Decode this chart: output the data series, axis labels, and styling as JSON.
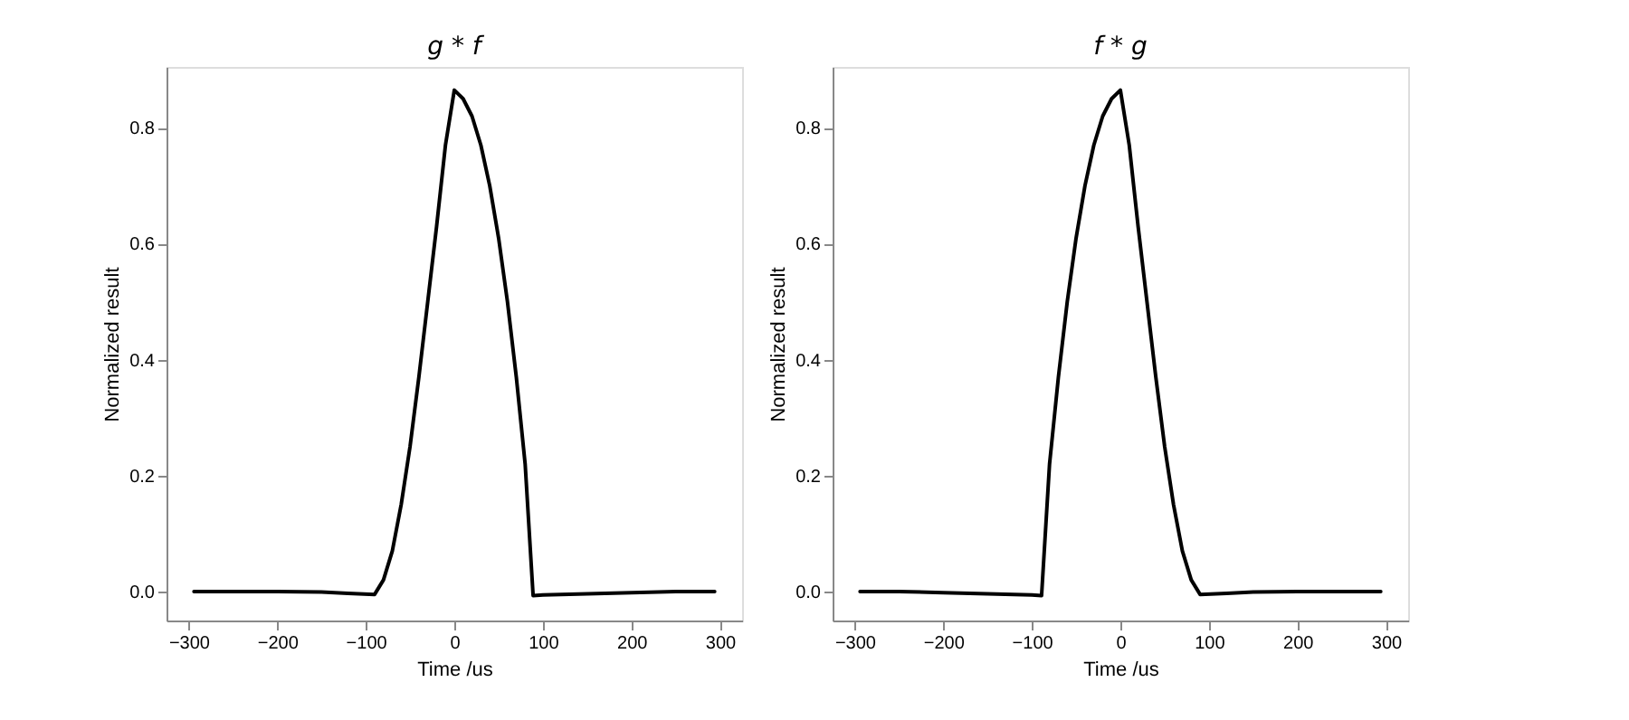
{
  "chart_data": [
    {
      "type": "line",
      "title": "g * f",
      "xlabel": "Time /us",
      "ylabel": "Normalized result",
      "x": [
        -294,
        -200,
        -150,
        -120,
        -90,
        -80,
        -70,
        -60,
        -50,
        -40,
        -30,
        -20,
        -10,
        0,
        10,
        20,
        30,
        40,
        50,
        60,
        70,
        80,
        89,
        100,
        150,
        200,
        250,
        294
      ],
      "series": [
        {
          "color": "#000000",
          "values": [
            0,
            0,
            -0.001,
            -0.003,
            -0.005,
            0.02,
            0.07,
            0.15,
            0.25,
            0.37,
            0.5,
            0.63,
            0.77,
            0.865,
            0.85,
            0.82,
            0.77,
            0.7,
            0.61,
            0.5,
            0.37,
            0.22,
            -0.007,
            -0.006,
            -0.004,
            -0.002,
            0,
            0
          ]
        }
      ],
      "xlim": [
        -325,
        325
      ],
      "ylim": [
        -0.05,
        0.905
      ],
      "xticks": [
        {
          "value": -300,
          "label": "−300"
        },
        {
          "value": -200,
          "label": "−200"
        },
        {
          "value": -100,
          "label": "−100"
        },
        0,
        100,
        200,
        300
      ],
      "yticks": [
        {
          "value": 0,
          "label": "0.0"
        },
        0.2,
        0.4,
        0.6,
        0.8
      ],
      "grid": false,
      "line_style": "solid"
    },
    {
      "type": "line",
      "title": "f * g",
      "xlabel": "Time /us",
      "ylabel": "Normalized result",
      "x": [
        -294,
        -250,
        -200,
        -150,
        -100,
        -89,
        -80,
        -70,
        -60,
        -50,
        -40,
        -30,
        -20,
        -10,
        0,
        10,
        20,
        30,
        40,
        50,
        60,
        70,
        80,
        90,
        120,
        150,
        200,
        294
      ],
      "series": [
        {
          "color": "#000000",
          "values": [
            0,
            0,
            -0.002,
            -0.004,
            -0.006,
            -0.007,
            0.22,
            0.37,
            0.5,
            0.61,
            0.7,
            0.77,
            0.82,
            0.85,
            0.865,
            0.77,
            0.63,
            0.5,
            0.37,
            0.25,
            0.15,
            0.07,
            0.02,
            -0.005,
            -0.003,
            -0.001,
            0,
            0
          ]
        }
      ],
      "xlim": [
        -325,
        325
      ],
      "ylim": [
        -0.05,
        0.905
      ],
      "xticks": [
        {
          "value": -300,
          "label": "−300"
        },
        {
          "value": -200,
          "label": "−200"
        },
        {
          "value": -100,
          "label": "−100"
        },
        0,
        100,
        200,
        300
      ],
      "yticks": [
        {
          "value": 0,
          "label": "0.0"
        },
        0.2,
        0.4,
        0.6,
        0.8
      ],
      "grid": false,
      "line_style": "solid"
    }
  ]
}
